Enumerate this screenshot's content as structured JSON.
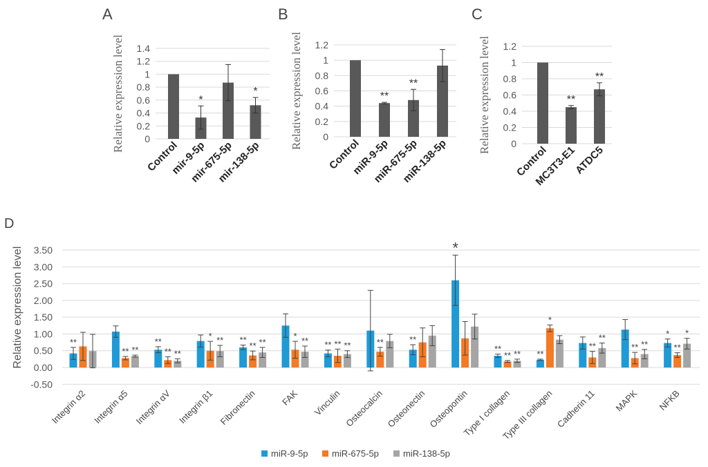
{
  "colors": {
    "bar_dark": "#595959",
    "blue": "#1f9ad6",
    "orange": "#f47a25",
    "gray": "#a5a5a5",
    "grid": "#d9d9d9"
  },
  "chart_data": [
    {
      "panel": "A",
      "type": "bar",
      "ylabel": "Relative expression level",
      "ylim": [
        0,
        1.4
      ],
      "yticks": [
        "0",
        "0.2",
        "0.4",
        "0.6",
        "0.8",
        "1",
        "1.2",
        "1.4"
      ],
      "categories": [
        "Control",
        "mir-9-5p",
        "mir-675-5p",
        "mir-138-5p"
      ],
      "values": [
        1,
        0.33,
        0.87,
        0.52
      ],
      "errors": [
        0,
        0.18,
        0.28,
        0.12
      ],
      "significance": [
        "",
        "*",
        "",
        "*"
      ]
    },
    {
      "panel": "B",
      "type": "bar",
      "ylabel": "Relative expression level",
      "ylim": [
        0,
        1.2
      ],
      "yticks": [
        "0",
        "0.2",
        "0.4",
        "0.6",
        "0.8",
        "1",
        "1.2"
      ],
      "categories": [
        "Control",
        "miR-9-5p",
        "miR-675-5p",
        "miR-138-5p"
      ],
      "values": [
        1,
        0.44,
        0.48,
        0.93
      ],
      "errors": [
        0,
        0.01,
        0.14,
        0.21
      ],
      "significance": [
        "",
        "**",
        "**",
        ""
      ]
    },
    {
      "panel": "C",
      "type": "bar",
      "ylabel": "Relative expression level",
      "ylim": [
        0,
        1.2
      ],
      "yticks": [
        "0",
        "0.2",
        "0.4",
        "0.6",
        "0.8",
        "1",
        "1.2"
      ],
      "categories": [
        "Control",
        "MC3T3-E1",
        "ATDC5"
      ],
      "values": [
        1,
        0.45,
        0.67
      ],
      "errors": [
        0,
        0.02,
        0.08
      ],
      "significance": [
        "",
        "**",
        "**"
      ]
    },
    {
      "panel": "D",
      "type": "bar",
      "ylabel": "Relative  expression level",
      "ylim": [
        -0.5,
        3.5
      ],
      "yticks": [
        "-0.50",
        "0.00",
        "0.50",
        "1.00",
        "1.50",
        "2.00",
        "2.50",
        "3.00",
        "3.50"
      ],
      "legend_position": "bottom",
      "categories": [
        "Integrin α2",
        "Integrin α5",
        "Integrin αV",
        "Integrin β1",
        "Fibronectin",
        "FAK",
        "Vinculin",
        "Osteocalcin",
        "Osteonectin",
        "Osteopontin",
        "Type I collagen",
        "Type III collagen",
        "Cadherin 11",
        "MAPK",
        "NFKB"
      ],
      "series": [
        {
          "name": "miR-9-5p",
          "values": [
            0.42,
            1.07,
            0.53,
            0.79,
            0.6,
            1.25,
            0.42,
            1.1,
            0.53,
            2.6,
            0.35,
            0.23,
            0.73,
            1.13,
            0.73
          ],
          "errors": [
            0.18,
            0.17,
            0.09,
            0.18,
            0.07,
            0.35,
            0.1,
            1.2,
            0.15,
            0.75,
            0.05,
            0.02,
            0.18,
            0.3,
            0.12
          ],
          "significance": [
            "**",
            "",
            "**",
            "",
            "**",
            "",
            "**",
            "",
            "**",
            "*",
            "**",
            "**",
            "",
            "",
            "*"
          ]
        },
        {
          "name": "miR-675-5p",
          "values": [
            0.63,
            0.28,
            0.22,
            0.5,
            0.36,
            0.53,
            0.35,
            0.47,
            0.75,
            0.87,
            0.18,
            1.17,
            0.3,
            0.28,
            0.37
          ],
          "errors": [
            0.42,
            0.05,
            0.1,
            0.28,
            0.13,
            0.25,
            0.2,
            0.13,
            0.43,
            0.5,
            0.03,
            0.1,
            0.18,
            0.17,
            0.07
          ],
          "significance": [
            "",
            "**",
            "**",
            "*",
            "**",
            "*",
            "**",
            "**",
            "",
            "",
            "**",
            "*",
            "**",
            "**",
            "**"
          ]
        },
        {
          "name": "miR-138-5p",
          "values": [
            0.49,
            0.34,
            0.2,
            0.49,
            0.45,
            0.47,
            0.4,
            0.79,
            0.95,
            1.22,
            0.2,
            0.83,
            0.58,
            0.4,
            0.71
          ],
          "errors": [
            0.5,
            0.03,
            0.06,
            0.17,
            0.15,
            0.17,
            0.1,
            0.2,
            0.3,
            0.37,
            0.05,
            0.12,
            0.15,
            0.14,
            0.16
          ],
          "significance": [
            "",
            "**",
            "**",
            "**",
            "**",
            "**",
            "**",
            "",
            "",
            "",
            "**",
            "",
            "**",
            "**",
            "*"
          ]
        }
      ]
    }
  ]
}
